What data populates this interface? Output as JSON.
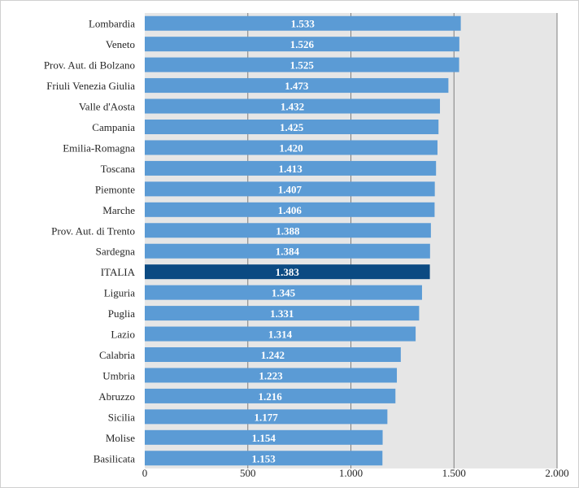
{
  "chart_data": {
    "type": "bar",
    "orientation": "horizontal",
    "title": "",
    "xlabel": "",
    "ylabel": "",
    "xlim": [
      0,
      2000
    ],
    "xticks": [
      0,
      500,
      1000,
      1500,
      2000
    ],
    "xtick_labels": [
      "0",
      "500",
      "1.000",
      "1.500",
      "2.000"
    ],
    "grid": true,
    "legend": "none",
    "categories": [
      "Lombardia",
      "Veneto",
      "Prov. Aut. di Bolzano",
      "Friuli Venezia Giulia",
      "Valle d'Aosta",
      "Campania",
      "Emilia-Romagna",
      "Toscana",
      "Piemonte",
      "Marche",
      "Prov. Aut. di Trento",
      "Sardegna",
      "ITALIA",
      "Liguria",
      "Puglia",
      "Lazio",
      "Calabria",
      "Umbria",
      "Abruzzo",
      "Sicilia",
      "Molise",
      "Basilicata"
    ],
    "values": [
      1533,
      1526,
      1525,
      1473,
      1432,
      1425,
      1420,
      1413,
      1407,
      1406,
      1388,
      1384,
      1383,
      1345,
      1331,
      1314,
      1242,
      1223,
      1216,
      1177,
      1154,
      1153
    ],
    "value_labels": [
      "1.533",
      "1.526",
      "1.525",
      "1.473",
      "1.432",
      "1.425",
      "1.420",
      "1.413",
      "1.407",
      "1.406",
      "1.388",
      "1.384",
      "1.383",
      "1.345",
      "1.331",
      "1.314",
      "1.242",
      "1.223",
      "1.216",
      "1.177",
      "1.154",
      "1.153"
    ],
    "highlight": "ITALIA",
    "colors": {
      "bar": "#5b9bd5",
      "highlight": "#0b4a82",
      "plot_bg": "#e6e6e6",
      "grid": "#7f7f7f",
      "label": "#ffffff",
      "text": "#262626"
    }
  }
}
